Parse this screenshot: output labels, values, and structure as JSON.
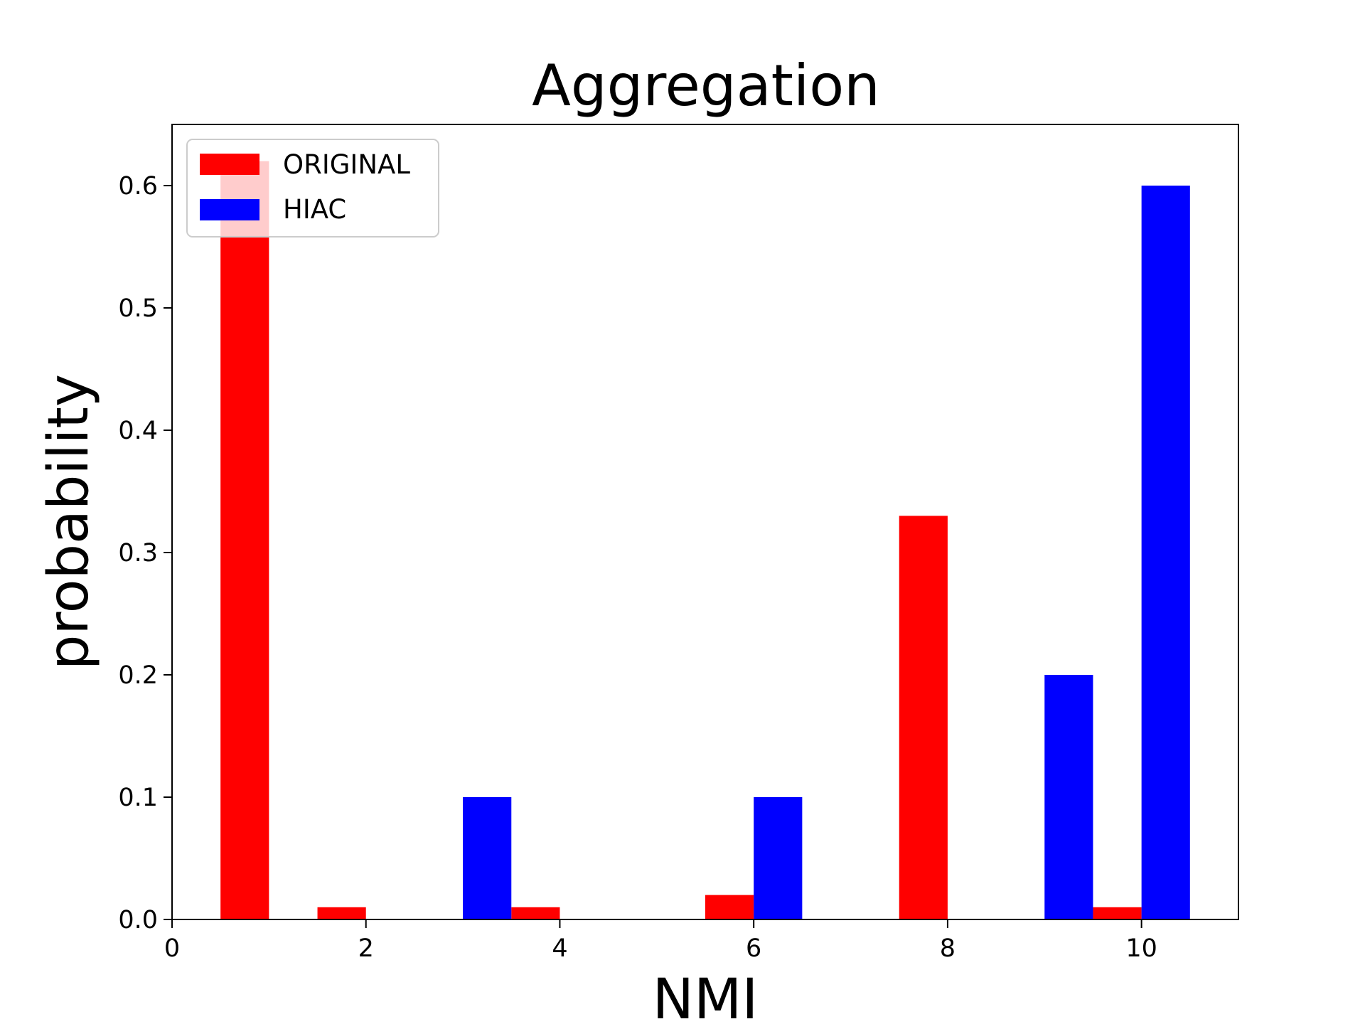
{
  "chart_data": {
    "type": "bar",
    "title": "Aggregation",
    "xlabel": "NMI",
    "ylabel": "probability",
    "xlim": [
      0,
      11
    ],
    "ylim": [
      0,
      0.65
    ],
    "xticks": [
      "0",
      "2",
      "4",
      "6",
      "8",
      "10"
    ],
    "yticks": [
      "0.0",
      "0.1",
      "0.2",
      "0.3",
      "0.4",
      "0.5",
      "0.6"
    ],
    "grid": false,
    "legend": "top-left",
    "bar_width": 0.5,
    "series": [
      {
        "name": "ORIGINAL",
        "color": "#ff0000",
        "x": [
          0.75,
          1.75,
          2.75,
          3.75,
          4.75,
          5.75,
          6.75,
          7.75,
          8.75,
          9.75
        ],
        "values": [
          0.62,
          0.01,
          0.0,
          0.01,
          0.0,
          0.02,
          0.0,
          0.33,
          0.0,
          0.01
        ]
      },
      {
        "name": "HIAC",
        "color": "#0000ff",
        "x": [
          1.25,
          2.25,
          3.25,
          4.25,
          5.25,
          6.25,
          7.25,
          8.25,
          9.25,
          10.25
        ],
        "values": [
          0.0,
          0.0,
          0.1,
          0.0,
          0.0,
          0.1,
          0.0,
          0.0,
          0.2,
          0.6
        ]
      }
    ]
  }
}
